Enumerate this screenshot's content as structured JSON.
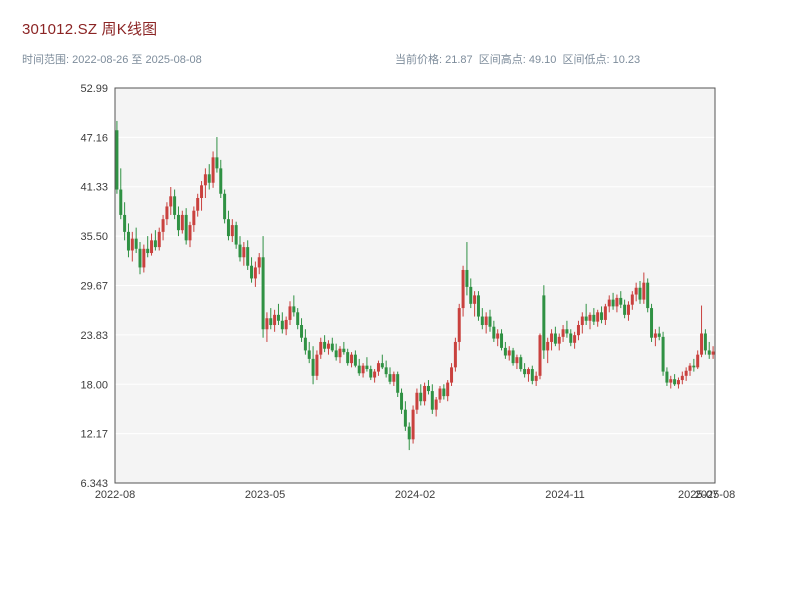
{
  "header": {
    "title": "301012.SZ 周K线图",
    "subtitle_left": "时间范围: 2022-08-26 至 2025-08-08",
    "subtitle_right": "当前价格: 21.87  区间高点: 49.10  区间低点: 10.23"
  },
  "colors": {
    "title": "#8b2424",
    "subtitle": "#7d8c9b",
    "axis_text": "#3c3c3c",
    "panel_bg": "#f4f4f4",
    "panel_border": "#555555",
    "grid": "#ffffff",
    "up": "#c9413e",
    "down": "#2f9143"
  },
  "chart_data": {
    "type": "candlestick",
    "title": "301012.SZ 周K线图",
    "symbol": "301012.SZ",
    "period": "weekly",
    "date_range": [
      "2022-08-26",
      "2025-08-08"
    ],
    "current_price": 21.87,
    "range_high": 49.1,
    "range_low": 10.23,
    "ylim": [
      6.343,
      52.99
    ],
    "ytick_labels": [
      "52.99",
      "47.16",
      "41.33",
      "35.50",
      "29.67",
      "23.83",
      "18.00",
      "12.17",
      "6.343"
    ],
    "xticks": [
      {
        "label": "2022-08",
        "pos": 0.0
      },
      {
        "label": "2023-05",
        "pos": 0.25
      },
      {
        "label": "2024-02",
        "pos": 0.5
      },
      {
        "label": "2024-11",
        "pos": 0.75
      },
      {
        "label": "2025-07",
        "pos": 0.972
      },
      {
        "label": "2025-08",
        "pos": 1.0
      }
    ],
    "grid": true,
    "legend": "none",
    "candles": [
      [
        48.0,
        49.1,
        40.5,
        41.0
      ],
      [
        41.0,
        43.5,
        37.5,
        38.0
      ],
      [
        38.0,
        39.5,
        35.0,
        36.0
      ],
      [
        36.0,
        37.0,
        33.0,
        33.8
      ],
      [
        33.8,
        36.0,
        32.5,
        35.2
      ],
      [
        35.2,
        36.5,
        33.5,
        34.0
      ],
      [
        34.0,
        34.8,
        31.0,
        31.8
      ],
      [
        31.8,
        34.5,
        31.2,
        34.0
      ],
      [
        34.0,
        35.5,
        33.0,
        33.5
      ],
      [
        33.5,
        35.8,
        33.2,
        35.0
      ],
      [
        35.0,
        36.2,
        33.8,
        34.2
      ],
      [
        34.2,
        36.5,
        33.8,
        36.0
      ],
      [
        36.0,
        38.0,
        35.0,
        37.5
      ],
      [
        37.5,
        39.5,
        36.8,
        39.0
      ],
      [
        39.0,
        41.3,
        38.0,
        40.2
      ],
      [
        40.2,
        41.0,
        37.5,
        38.0
      ],
      [
        38.0,
        39.0,
        35.5,
        36.2
      ],
      [
        36.2,
        38.5,
        35.8,
        38.0
      ],
      [
        38.0,
        38.8,
        34.5,
        35.0
      ],
      [
        35.0,
        37.2,
        34.2,
        36.8
      ],
      [
        36.8,
        39.0,
        36.0,
        38.5
      ],
      [
        38.5,
        40.5,
        37.8,
        40.0
      ],
      [
        40.0,
        42.0,
        38.5,
        41.5
      ],
      [
        41.5,
        43.5,
        40.0,
        42.8
      ],
      [
        42.8,
        44.0,
        41.0,
        41.8
      ],
      [
        41.8,
        45.5,
        41.2,
        44.8
      ],
      [
        44.8,
        47.2,
        43.0,
        43.5
      ],
      [
        43.5,
        44.5,
        40.0,
        40.5
      ],
      [
        40.5,
        41.0,
        37.0,
        37.5
      ],
      [
        37.5,
        38.5,
        35.0,
        35.5
      ],
      [
        35.5,
        37.5,
        34.8,
        36.8
      ],
      [
        36.8,
        37.2,
        34.0,
        34.5
      ],
      [
        34.5,
        35.5,
        32.5,
        33.0
      ],
      [
        33.0,
        34.8,
        32.0,
        34.2
      ],
      [
        34.2,
        35.0,
        31.5,
        32.0
      ],
      [
        32.0,
        33.0,
        30.0,
        30.5
      ],
      [
        30.5,
        32.5,
        29.5,
        31.8
      ],
      [
        31.8,
        33.5,
        31.0,
        33.0
      ],
      [
        33.0,
        35.5,
        23.5,
        24.5
      ],
      [
        24.5,
        26.5,
        23.0,
        25.8
      ],
      [
        25.8,
        27.0,
        24.5,
        25.0
      ],
      [
        25.0,
        26.8,
        24.2,
        26.2
      ],
      [
        26.2,
        27.5,
        25.0,
        25.5
      ],
      [
        25.5,
        26.5,
        24.0,
        24.5
      ],
      [
        24.5,
        26.0,
        23.8,
        25.6
      ],
      [
        25.6,
        27.8,
        25.0,
        27.2
      ],
      [
        27.2,
        28.5,
        26.0,
        26.5
      ],
      [
        26.5,
        27.0,
        24.5,
        25.0
      ],
      [
        25.0,
        25.8,
        23.0,
        23.5
      ],
      [
        23.5,
        24.5,
        21.5,
        22.0
      ],
      [
        22.0,
        23.0,
        20.5,
        21.0
      ],
      [
        21.0,
        22.5,
        18.0,
        19.0
      ],
      [
        19.0,
        22.0,
        18.5,
        21.5
      ],
      [
        21.5,
        23.5,
        21.0,
        23.0
      ],
      [
        23.0,
        23.8,
        21.8,
        22.2
      ],
      [
        22.2,
        23.2,
        21.5,
        22.8
      ],
      [
        22.8,
        23.5,
        21.8,
        22.0
      ],
      [
        22.0,
        22.8,
        20.8,
        21.2
      ],
      [
        21.2,
        22.5,
        20.5,
        22.2
      ],
      [
        22.2,
        23.0,
        21.5,
        21.8
      ],
      [
        21.8,
        22.2,
        20.2,
        20.5
      ],
      [
        20.5,
        21.8,
        20.0,
        21.5
      ],
      [
        21.5,
        22.0,
        20.0,
        20.2
      ],
      [
        20.2,
        21.0,
        19.0,
        19.3
      ],
      [
        19.3,
        20.5,
        18.8,
        20.2
      ],
      [
        20.2,
        21.2,
        19.5,
        19.8
      ],
      [
        19.8,
        20.2,
        18.5,
        18.8
      ],
      [
        18.8,
        19.8,
        18.2,
        19.5
      ],
      [
        19.5,
        20.8,
        19.0,
        20.5
      ],
      [
        20.5,
        21.5,
        19.8,
        20.0
      ],
      [
        20.0,
        20.8,
        18.8,
        19.2
      ],
      [
        19.2,
        20.0,
        18.0,
        18.3
      ],
      [
        18.3,
        19.5,
        17.8,
        19.2
      ],
      [
        19.2,
        19.5,
        16.5,
        17.0
      ],
      [
        17.0,
        17.5,
        14.5,
        15.0
      ],
      [
        15.0,
        16.0,
        12.5,
        13.0
      ],
      [
        13.0,
        13.5,
        10.23,
        11.5
      ],
      [
        11.5,
        15.5,
        11.0,
        15.0
      ],
      [
        15.0,
        17.5,
        14.5,
        17.0
      ],
      [
        17.0,
        18.0,
        15.5,
        16.0
      ],
      [
        16.0,
        18.2,
        15.5,
        17.8
      ],
      [
        17.8,
        18.5,
        16.8,
        17.2
      ],
      [
        17.2,
        18.0,
        14.5,
        15.0
      ],
      [
        15.0,
        16.5,
        14.2,
        16.2
      ],
      [
        16.2,
        17.8,
        15.8,
        17.5
      ],
      [
        17.5,
        18.0,
        16.2,
        16.6
      ],
      [
        16.6,
        18.5,
        16.0,
        18.2
      ],
      [
        18.2,
        20.5,
        17.8,
        20.0
      ],
      [
        20.0,
        23.5,
        19.5,
        23.0
      ],
      [
        23.0,
        27.5,
        22.0,
        27.0
      ],
      [
        27.0,
        32.0,
        26.0,
        31.5
      ],
      [
        31.5,
        34.8,
        28.5,
        29.5
      ],
      [
        29.5,
        30.5,
        27.0,
        27.5
      ],
      [
        27.5,
        29.0,
        26.0,
        28.5
      ],
      [
        28.5,
        29.0,
        25.5,
        26.0
      ],
      [
        26.0,
        27.0,
        24.5,
        25.0
      ],
      [
        25.0,
        26.5,
        24.0,
        26.0
      ],
      [
        26.0,
        26.8,
        24.2,
        24.8
      ],
      [
        24.8,
        25.5,
        23.0,
        23.4
      ],
      [
        23.4,
        24.5,
        22.5,
        24.0
      ],
      [
        24.0,
        24.5,
        22.0,
        22.3
      ],
      [
        22.3,
        23.0,
        21.0,
        21.4
      ],
      [
        21.4,
        22.5,
        20.8,
        22.0
      ],
      [
        22.0,
        22.3,
        20.2,
        20.5
      ],
      [
        20.5,
        21.5,
        19.8,
        21.2
      ],
      [
        21.2,
        21.5,
        19.5,
        19.8
      ],
      [
        19.8,
        20.5,
        18.8,
        19.2
      ],
      [
        19.2,
        20.0,
        18.3,
        19.8
      ],
      [
        19.8,
        20.2,
        18.0,
        18.4
      ],
      [
        18.4,
        19.5,
        17.8,
        19.0
      ],
      [
        19.0,
        24.0,
        18.6,
        23.8
      ],
      [
        28.5,
        29.7,
        21.0,
        22.0
      ],
      [
        22.0,
        23.5,
        20.5,
        23.0
      ],
      [
        23.0,
        24.5,
        22.0,
        24.0
      ],
      [
        24.0,
        24.8,
        22.5,
        22.8
      ],
      [
        22.8,
        24.0,
        22.0,
        23.6
      ],
      [
        23.6,
        25.0,
        23.0,
        24.5
      ],
      [
        24.5,
        25.5,
        23.5,
        24.0
      ],
      [
        24.0,
        24.5,
        22.5,
        22.9
      ],
      [
        22.9,
        24.2,
        22.2,
        23.8
      ],
      [
        23.8,
        25.5,
        23.2,
        25.0
      ],
      [
        25.0,
        26.5,
        24.0,
        26.0
      ],
      [
        26.0,
        27.5,
        25.0,
        25.5
      ],
      [
        25.5,
        26.5,
        24.5,
        26.2
      ],
      [
        26.2,
        27.0,
        25.0,
        25.4
      ],
      [
        25.4,
        26.8,
        24.8,
        26.5
      ],
      [
        26.5,
        27.2,
        25.2,
        25.6
      ],
      [
        25.6,
        27.5,
        25.0,
        27.2
      ],
      [
        27.2,
        28.5,
        26.5,
        28.0
      ],
      [
        28.0,
        28.8,
        26.8,
        27.2
      ],
      [
        27.2,
        28.6,
        26.5,
        28.2
      ],
      [
        28.2,
        29.0,
        27.0,
        27.4
      ],
      [
        27.4,
        28.0,
        25.8,
        26.2
      ],
      [
        26.2,
        27.8,
        25.5,
        27.4
      ],
      [
        27.4,
        29.0,
        26.8,
        28.6
      ],
      [
        28.6,
        30.0,
        27.8,
        29.4
      ],
      [
        29.4,
        30.2,
        27.5,
        28.0
      ],
      [
        28.0,
        31.2,
        27.5,
        30.0
      ],
      [
        30.0,
        30.5,
        26.5,
        27.0
      ],
      [
        27.0,
        27.5,
        23.0,
        23.5
      ],
      [
        23.5,
        24.5,
        22.5,
        24.0
      ],
      [
        24.0,
        24.8,
        23.2,
        23.6
      ],
      [
        23.6,
        24.2,
        19.0,
        19.5
      ],
      [
        19.5,
        20.0,
        17.8,
        18.2
      ],
      [
        18.2,
        19.0,
        17.5,
        18.6
      ],
      [
        18.6,
        19.2,
        17.8,
        18.0
      ],
      [
        18.0,
        18.8,
        17.5,
        18.5
      ],
      [
        18.5,
        19.5,
        18.0,
        19.0
      ],
      [
        19.0,
        20.0,
        18.4,
        19.6
      ],
      [
        19.6,
        20.5,
        19.0,
        20.2
      ],
      [
        20.2,
        21.0,
        19.5,
        20.0
      ],
      [
        20.0,
        22.0,
        19.8,
        21.5
      ],
      [
        21.5,
        27.3,
        21.2,
        24.0
      ],
      [
        24.0,
        24.5,
        21.5,
        22.0
      ],
      [
        22.0,
        23.0,
        21.0,
        21.5
      ],
      [
        21.5,
        22.5,
        21.0,
        21.87
      ]
    ]
  }
}
